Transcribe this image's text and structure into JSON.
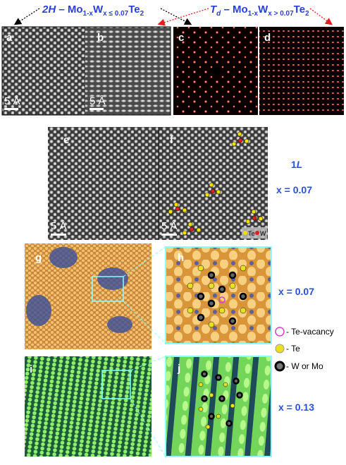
{
  "header": {
    "left": {
      "phase": "2H",
      "formula": " – Mo",
      "sub_a": "1-x",
      "w": "W",
      "sub_b": "x ≤ 0.07",
      "te": "Te",
      "sub_c": "2"
    },
    "right": {
      "phase": "T",
      "phase_sub": "d",
      "formula": " – Mo",
      "sub_a": "1-x",
      "w": "W",
      "sub_b": "x > 0.07",
      "te": "Te",
      "sub_c": "2"
    }
  },
  "panels": [
    "a",
    "b",
    "c",
    "d",
    "e",
    "f",
    "g",
    "h",
    "i",
    "j"
  ],
  "scale_bars": [
    "5 Å",
    "5 Å",
    "5 Å",
    "5 Å"
  ],
  "inset_legend": [
    "Te",
    "W"
  ],
  "annotations": {
    "layer_number": "1",
    "layer_unit": "L",
    "composition_ef": "x = 0.07",
    "composition_gh": "x = 0.07",
    "composition_ij": "x = 0.13"
  },
  "legend": [
    "- Te-vacancy",
    "- Te",
    "- W or Mo"
  ]
}
